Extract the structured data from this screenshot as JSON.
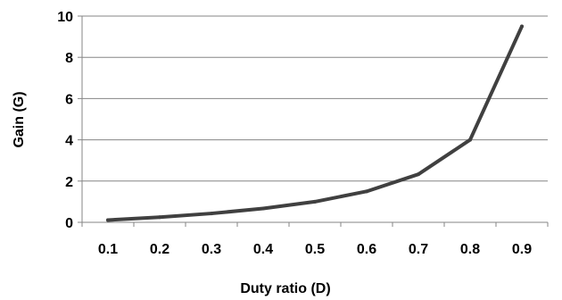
{
  "chart_data": {
    "type": "line",
    "title": "",
    "xlabel": "Duty ratio (D)",
    "ylabel": "Gain (G)",
    "x": [
      0.1,
      0.2,
      0.3,
      0.4,
      0.5,
      0.6,
      0.7,
      0.8,
      0.9
    ],
    "x_tick_labels": [
      "0.1",
      "0.2",
      "0.3",
      "0.4",
      "0.5",
      "0.6",
      "0.7",
      "0.8",
      "0.9"
    ],
    "y_ticks": [
      0,
      2,
      4,
      6,
      8,
      10
    ],
    "y_tick_labels": [
      "0",
      "2",
      "4",
      "6",
      "8",
      "10"
    ],
    "ylim": [
      0,
      10
    ],
    "grid": "horizontal",
    "legend": "none",
    "series": [
      {
        "values": [
          0.11,
          0.25,
          0.43,
          0.67,
          1.0,
          1.5,
          2.33,
          4.0,
          9.5
        ],
        "color": "#404040"
      }
    ],
    "colors": {
      "grid": "#868686",
      "axis": "#868686",
      "line": "#404040"
    }
  }
}
